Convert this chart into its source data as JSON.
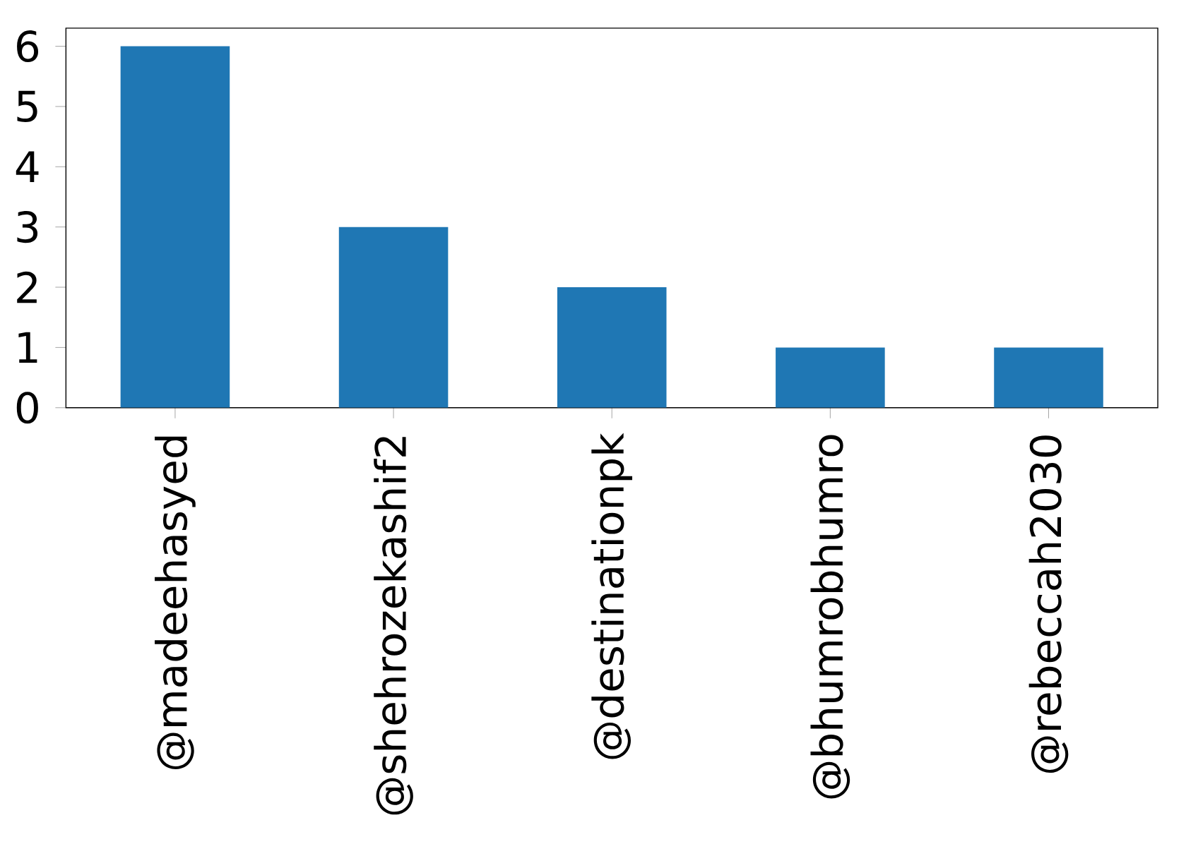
{
  "chart_data": {
    "type": "bar",
    "categories": [
      "@madeehasyed",
      "@shehrozekashif2",
      "@destinationpk",
      "@bhumrobhumro",
      "@rebeccah2030"
    ],
    "values": [
      6,
      3,
      2,
      1,
      1
    ],
    "color": "#1f77b4",
    "ylim": [
      0,
      6.3
    ],
    "yticks": [
      0,
      1,
      2,
      3,
      4,
      5,
      6
    ]
  }
}
